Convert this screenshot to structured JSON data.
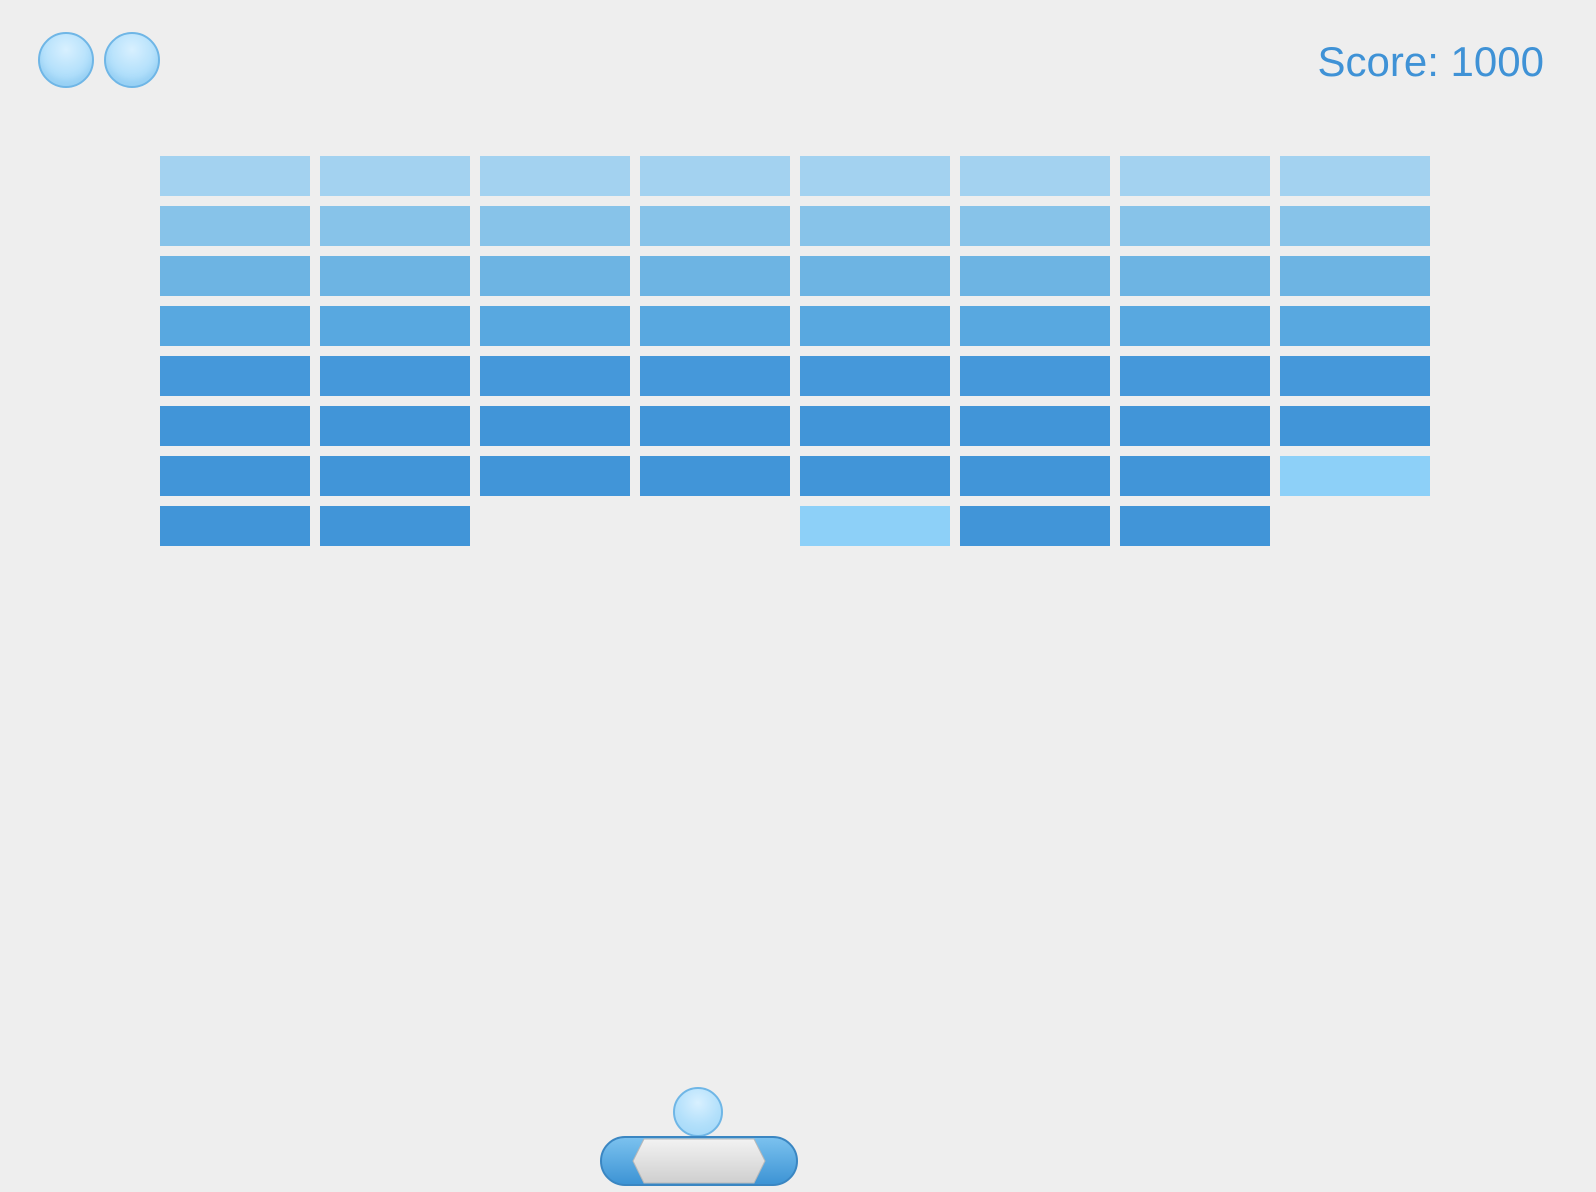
{
  "hud": {
    "lives_remaining": 2,
    "score_text": "Score: 1000"
  },
  "colors": {
    "background": "#eeeeee",
    "score": "#3f92d6",
    "brick_rows": [
      "#a3d2f0",
      "#87c3e9",
      "#6db4e3",
      "#58a8e0",
      "#4598da",
      "#4195d8",
      "#4195d8",
      "#4195d8"
    ],
    "brick_highlight": "#8dd0f8",
    "ball": "#b3e0fb",
    "paddle_blue": "#4aa2e0",
    "paddle_gray": "#d6d6d6"
  },
  "bricks": {
    "rows": 8,
    "cols": 8,
    "grid": [
      [
        1,
        1,
        1,
        1,
        1,
        1,
        1,
        1
      ],
      [
        1,
        1,
        1,
        1,
        1,
        1,
        1,
        1
      ],
      [
        1,
        1,
        1,
        1,
        1,
        1,
        1,
        1
      ],
      [
        1,
        1,
        1,
        1,
        1,
        1,
        1,
        1
      ],
      [
        1,
        1,
        1,
        1,
        1,
        1,
        1,
        1
      ],
      [
        1,
        1,
        1,
        1,
        1,
        1,
        1,
        1
      ],
      [
        1,
        1,
        1,
        1,
        1,
        1,
        1,
        2
      ],
      [
        1,
        1,
        0,
        0,
        2,
        1,
        1,
        0
      ]
    ]
  },
  "icons": {
    "life": "ball-icon",
    "ball": "ball-icon",
    "paddle": "paddle-icon"
  }
}
